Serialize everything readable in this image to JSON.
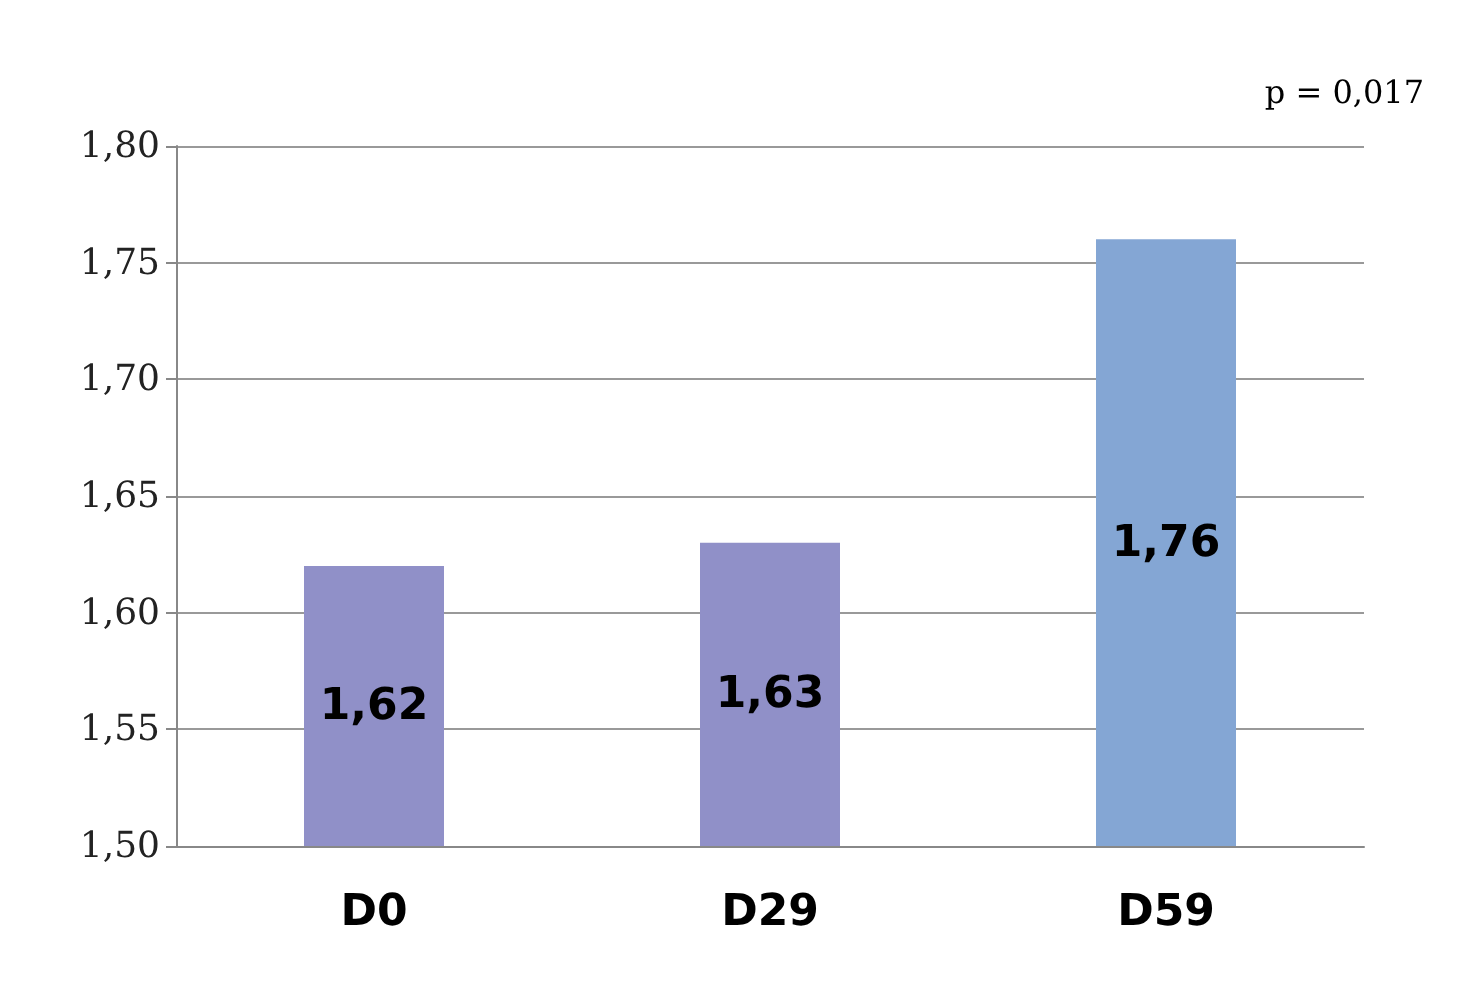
{
  "chart_data": {
    "type": "bar",
    "categories": [
      "D0",
      "D29",
      "D59"
    ],
    "values": [
      1.62,
      1.63,
      1.76
    ],
    "colors": [
      "#9090c8",
      "#9090c8",
      "#84a6d4"
    ],
    "value_labels": [
      "1,62",
      "1,63",
      "1,76"
    ],
    "ylim": [
      1.5,
      1.8
    ],
    "yticks": [
      {
        "value": 1.5,
        "label": "1,50"
      },
      {
        "value": 1.55,
        "label": "1,55"
      },
      {
        "value": 1.6,
        "label": "1,60"
      },
      {
        "value": 1.65,
        "label": "1,65"
      },
      {
        "value": 1.7,
        "label": "1,70"
      },
      {
        "value": 1.75,
        "label": "1,75"
      },
      {
        "value": 1.8,
        "label": "1,80"
      }
    ],
    "grid": "y",
    "annotations": [
      "p = 0,017"
    ]
  }
}
